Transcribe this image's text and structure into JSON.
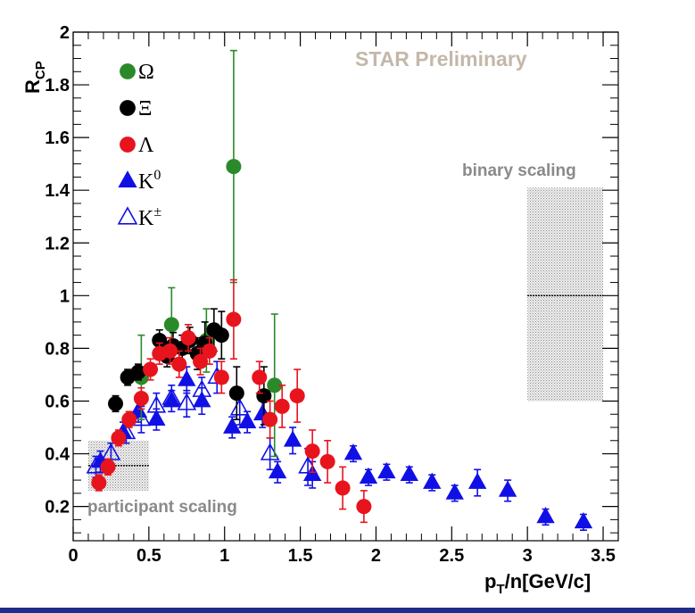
{
  "chart_data": {
    "type": "scatter",
    "title": "",
    "watermark": "STAR Preliminary",
    "ylabel": {
      "main": "R",
      "sub": "CP"
    },
    "xlabel": {
      "p": "p",
      "sub": "T",
      "rest": "/n[GeV/c]"
    },
    "xlim": [
      0,
      3.6
    ],
    "ylim": [
      0.07,
      2.0
    ],
    "xticks": [
      0,
      0.5,
      1,
      1.5,
      2,
      2.5,
      3,
      3.5
    ],
    "xtick_labels": [
      "0",
      "0.5",
      "1",
      "1.5",
      "2",
      "2.5",
      "3",
      "3.5"
    ],
    "yticks": [
      0.2,
      0.4,
      0.6,
      0.8,
      1.0,
      1.2,
      1.4,
      1.6,
      1.8,
      2.0
    ],
    "ytick_labels": [
      "0.2",
      "0.4",
      "0.6",
      "0.8",
      "1",
      "1.2",
      "1.4",
      "1.6",
      "1.8",
      "2"
    ],
    "bands": [
      {
        "name": "binary scaling",
        "label": "binary scaling",
        "x": [
          3.0,
          3.5
        ],
        "y": [
          0.6,
          1.41
        ],
        "center": 1.0
      },
      {
        "name": "participant scaling",
        "label": "participant scaling",
        "x": [
          0.1,
          0.5
        ],
        "y": [
          0.26,
          0.45
        ],
        "center": 0.355
      }
    ],
    "series": [
      {
        "name": "Omega",
        "label": "Ω",
        "sup": "",
        "marker": "circle",
        "filled": true,
        "color": "#2a8a2a",
        "points": [
          [
            0.45,
            0.69,
            0.16
          ],
          [
            0.65,
            0.89,
            0.14
          ],
          [
            0.88,
            0.83,
            0.12
          ],
          [
            1.06,
            1.49,
            0.44
          ],
          [
            1.33,
            0.66,
            0.27
          ]
        ]
      },
      {
        "name": "Xi",
        "label": "Ξ",
        "sup": "",
        "marker": "circle",
        "filled": true,
        "color": "#000000",
        "points": [
          [
            0.28,
            0.59,
            0.03
          ],
          [
            0.36,
            0.69,
            0.03
          ],
          [
            0.43,
            0.71,
            0.03
          ],
          [
            0.57,
            0.83,
            0.04
          ],
          [
            0.62,
            0.77,
            0.04
          ],
          [
            0.66,
            0.81,
            0.05
          ],
          [
            0.72,
            0.8,
            0.05
          ],
          [
            0.77,
            0.83,
            0.05
          ],
          [
            0.82,
            0.78,
            0.06
          ],
          [
            0.87,
            0.82,
            0.08
          ],
          [
            0.93,
            0.87,
            0.08
          ],
          [
            0.98,
            0.85,
            0.09
          ],
          [
            1.08,
            0.63,
            0.1
          ],
          [
            1.26,
            0.62,
            0.11
          ]
        ]
      },
      {
        "name": "Lambda",
        "label": "Λ",
        "sup": "",
        "marker": "circle",
        "filled": true,
        "color": "#e8141d",
        "points": [
          [
            0.17,
            0.29,
            0.03
          ],
          [
            0.23,
            0.35,
            0.03
          ],
          [
            0.3,
            0.46,
            0.03
          ],
          [
            0.37,
            0.53,
            0.03
          ],
          [
            0.45,
            0.61,
            0.04
          ],
          [
            0.51,
            0.72,
            0.04
          ],
          [
            0.57,
            0.78,
            0.04
          ],
          [
            0.64,
            0.79,
            0.05
          ],
          [
            0.7,
            0.74,
            0.05
          ],
          [
            0.76,
            0.84,
            0.05
          ],
          [
            0.84,
            0.75,
            0.05
          ],
          [
            0.9,
            0.79,
            0.05
          ],
          [
            0.98,
            0.69,
            0.06
          ],
          [
            1.06,
            0.91,
            0.15
          ],
          [
            1.23,
            0.69,
            0.06
          ],
          [
            1.3,
            0.53,
            0.07
          ],
          [
            1.38,
            0.58,
            0.08
          ],
          [
            1.48,
            0.62,
            0.1
          ],
          [
            1.58,
            0.41,
            0.08
          ],
          [
            1.68,
            0.37,
            0.08
          ],
          [
            1.78,
            0.27,
            0.08
          ],
          [
            1.92,
            0.2,
            0.06
          ]
        ]
      },
      {
        "name": "K0",
        "label": "K",
        "sup": "0",
        "marker": "triangle",
        "filled": true,
        "color": "#1010e6",
        "points": [
          [
            0.18,
            0.37,
            0.04
          ],
          [
            0.33,
            0.48,
            0.04
          ],
          [
            0.43,
            0.56,
            0.04
          ],
          [
            0.55,
            0.53,
            0.04
          ],
          [
            0.65,
            0.6,
            0.04
          ],
          [
            0.75,
            0.68,
            0.05
          ],
          [
            0.85,
            0.6,
            0.05
          ],
          [
            1.05,
            0.5,
            0.04
          ],
          [
            1.15,
            0.52,
            0.04
          ],
          [
            1.25,
            0.55,
            0.05
          ],
          [
            1.35,
            0.33,
            0.04
          ],
          [
            1.45,
            0.45,
            0.05
          ],
          [
            1.58,
            0.32,
            0.05
          ],
          [
            1.85,
            0.4,
            0.03
          ],
          [
            1.95,
            0.31,
            0.03
          ],
          [
            2.07,
            0.33,
            0.03
          ],
          [
            2.22,
            0.32,
            0.03
          ],
          [
            2.37,
            0.29,
            0.03
          ],
          [
            2.52,
            0.25,
            0.03
          ],
          [
            2.67,
            0.29,
            0.05
          ],
          [
            2.87,
            0.26,
            0.04
          ],
          [
            3.12,
            0.16,
            0.03
          ],
          [
            3.37,
            0.14,
            0.03
          ]
        ]
      },
      {
        "name": "Kpm",
        "label": "K",
        "sup": "±",
        "marker": "triangle",
        "filled": false,
        "color": "#1010e6",
        "points": [
          [
            0.15,
            0.35,
            0.04
          ],
          [
            0.25,
            0.4,
            0.04
          ],
          [
            0.35,
            0.48,
            0.04
          ],
          [
            0.45,
            0.53,
            0.05
          ],
          [
            0.55,
            0.58,
            0.05
          ],
          [
            0.65,
            0.61,
            0.05
          ],
          [
            0.75,
            0.59,
            0.05
          ],
          [
            0.85,
            0.64,
            0.05
          ],
          [
            0.95,
            0.69,
            0.06
          ],
          [
            1.1,
            0.57,
            0.06
          ],
          [
            1.3,
            0.4,
            0.06
          ],
          [
            1.55,
            0.35,
            0.07
          ]
        ]
      }
    ]
  }
}
